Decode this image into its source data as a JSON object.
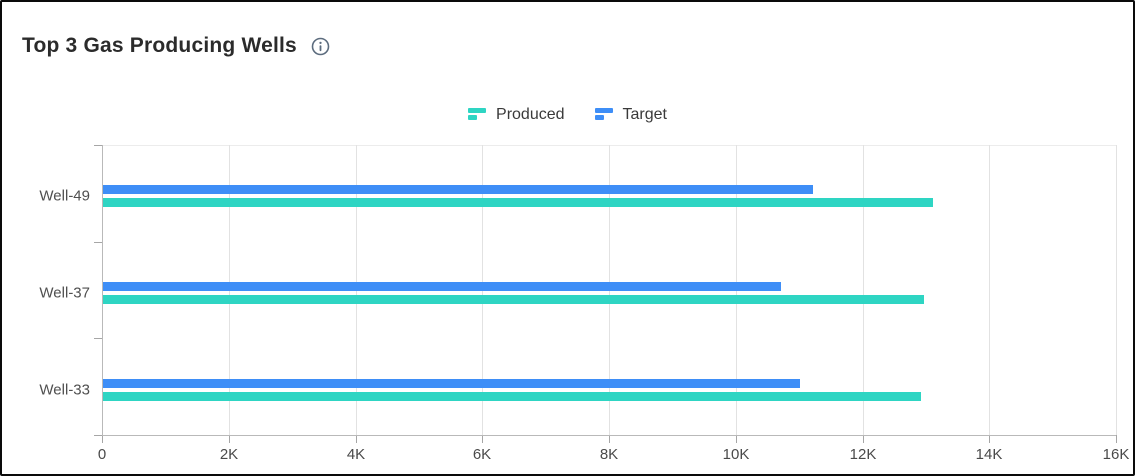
{
  "page": {
    "title": "Top 3 Gas Producing Wells"
  },
  "icons": {
    "info": "info-outline-icon",
    "legend_marker": "horizontal-bars-icon"
  },
  "colors": {
    "produced": "#2ed5c3",
    "target": "#3e8ef7",
    "gridline": "#e2e2e2",
    "axis_line": "#b9b9b9",
    "title_text": "#2b2b2b",
    "label_text": "#4a4a4a",
    "info_icon": "#5c6c7e"
  },
  "chart_data": {
    "type": "bar",
    "orientation": "horizontal",
    "title": "Top 3 Gas Producing Wells",
    "categories": [
      "Well-49",
      "Well-37",
      "Well-33"
    ],
    "series": [
      {
        "name": "Produced",
        "color": "#2ed5c3",
        "values": [
          13100,
          12950,
          12900
        ]
      },
      {
        "name": "Target",
        "color": "#3e8ef7",
        "values": [
          11200,
          10700,
          11000
        ]
      }
    ],
    "xlim": [
      0,
      16000
    ],
    "x_tick_step": 2000,
    "x_tick_labels": [
      "0",
      "2K",
      "4K",
      "6K",
      "8K",
      "10K",
      "12K",
      "14K",
      "16K"
    ],
    "xlabel": "",
    "ylabel": "",
    "grid": "vertical",
    "legend_position": "top-center"
  }
}
